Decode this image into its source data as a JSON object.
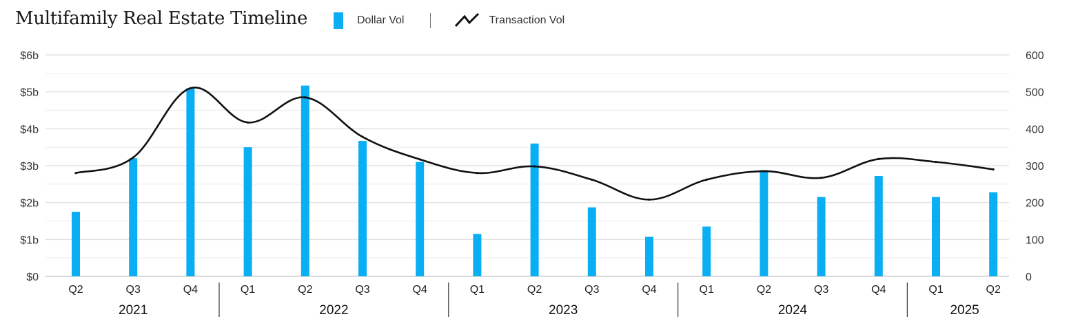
{
  "chart_data": {
    "type": "bar",
    "title": "Multifamily Real Estate Timeline",
    "legend": {
      "placement": "top",
      "bar_series_label": "Dollar Vol",
      "line_series_label": "Transaction Vol"
    },
    "categories": [
      "Q2",
      "Q3",
      "Q4",
      "Q1",
      "Q2",
      "Q3",
      "Q4",
      "Q1",
      "Q2",
      "Q3",
      "Q4",
      "Q1",
      "Q2",
      "Q3",
      "Q4",
      "Q1",
      "Q2"
    ],
    "years": [
      {
        "label": "2021",
        "start": 0,
        "end": 2
      },
      {
        "label": "2022",
        "start": 3,
        "end": 6
      },
      {
        "label": "2023",
        "start": 7,
        "end": 10
      },
      {
        "label": "2024",
        "start": 11,
        "end": 14
      },
      {
        "label": "2025",
        "start": 15,
        "end": 16
      }
    ],
    "series": [
      {
        "name": "Dollar Vol",
        "type": "bar",
        "axis": "left",
        "color": "#0aaef2",
        "values": [
          1.75,
          3.2,
          5.1,
          3.5,
          5.17,
          3.67,
          3.1,
          1.15,
          3.6,
          1.87,
          1.07,
          1.35,
          2.88,
          2.15,
          2.72,
          2.15,
          2.28
        ]
      },
      {
        "name": "Transaction Vol",
        "type": "line",
        "axis": "right",
        "color": "#111111",
        "values": [
          280,
          322,
          510,
          417,
          485,
          378,
          317,
          280,
          298,
          262,
          208,
          262,
          285,
          267,
          318,
          310,
          290
        ]
      }
    ],
    "y_left": {
      "min": 0,
      "max": 6,
      "ticks": [
        "$0",
        "$1b",
        "$2b",
        "$3b",
        "$4b",
        "$5b",
        "$6b"
      ]
    },
    "y_right": {
      "min": 0,
      "max": 600,
      "ticks": [
        "0",
        "100",
        "200",
        "300",
        "400",
        "500",
        "600"
      ]
    },
    "grid": true
  }
}
